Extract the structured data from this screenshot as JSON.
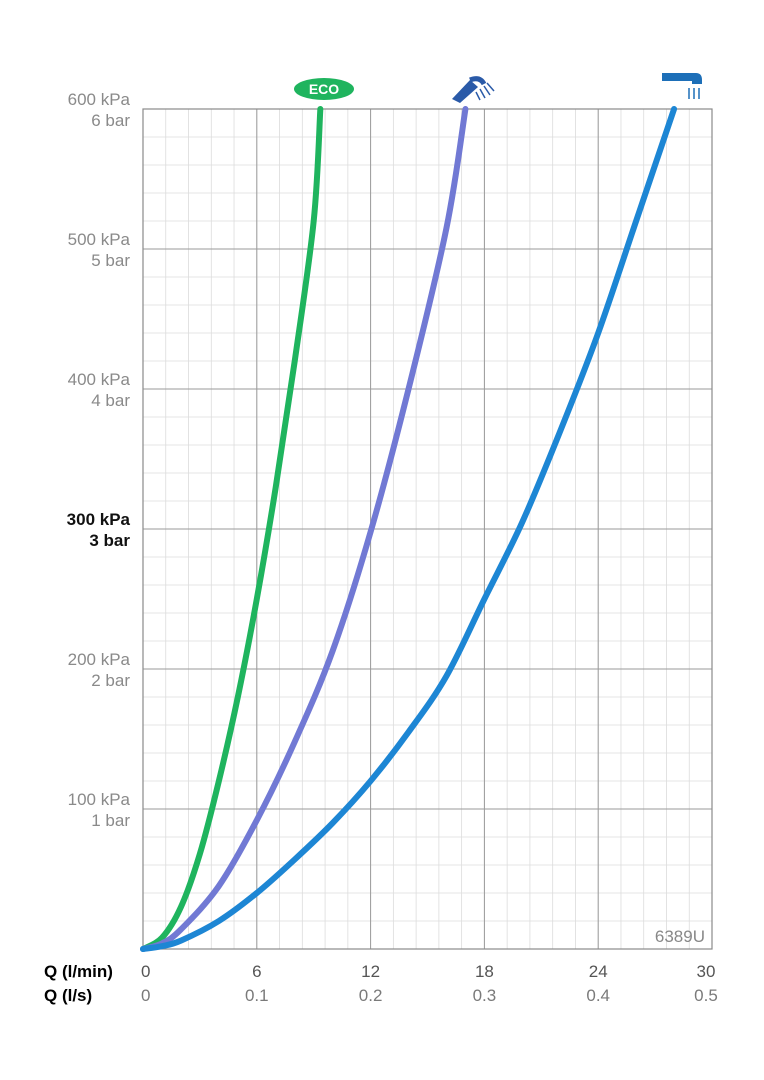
{
  "chart_data": {
    "type": "line",
    "x_axis": {
      "label_primary": "Q (l/min)",
      "label_secondary": "Q (l/s)",
      "range": [
        0,
        30
      ],
      "ticks": [
        0,
        6,
        12,
        18,
        24,
        30
      ],
      "tick_labels_primary": [
        "0",
        "6",
        "12",
        "18",
        "24",
        "30"
      ],
      "tick_labels_secondary": [
        "0",
        "0.1",
        "0.2",
        "0.3",
        "0.4",
        "0.5"
      ]
    },
    "y_axis": {
      "range": [
        0,
        600
      ],
      "ticks": [
        {
          "value": 100,
          "line1": "100 kPa",
          "line2": "1 bar",
          "highlight": false
        },
        {
          "value": 200,
          "line1": "200 kPa",
          "line2": "2 bar",
          "highlight": false
        },
        {
          "value": 300,
          "line1": "300 kPa",
          "line2": "3 bar",
          "highlight": true
        },
        {
          "value": 400,
          "line1": "400 kPa",
          "line2": "4 bar",
          "highlight": false
        },
        {
          "value": 500,
          "line1": "500 kPa",
          "line2": "5 bar",
          "highlight": false
        },
        {
          "value": 600,
          "line1": "600 kPa",
          "line2": "6 bar",
          "highlight": false
        }
      ]
    },
    "grid": true,
    "model_code": "6389U",
    "series": [
      {
        "icon": "eco-badge",
        "label": "ECO",
        "color": "#1fb45e",
        "points": [
          [
            0,
            0
          ],
          [
            1,
            8
          ],
          [
            2,
            30
          ],
          [
            3,
            68
          ],
          [
            4,
            120
          ],
          [
            5,
            180
          ],
          [
            6,
            250
          ],
          [
            7,
            330
          ],
          [
            8,
            420
          ],
          [
            9,
            520
          ],
          [
            9.35,
            600
          ]
        ]
      },
      {
        "icon": "hand-shower-icon",
        "color": "#7179d4",
        "points": [
          [
            0,
            0
          ],
          [
            1,
            4
          ],
          [
            2,
            14
          ],
          [
            4,
            45
          ],
          [
            6,
            92
          ],
          [
            8,
            148
          ],
          [
            10,
            213
          ],
          [
            12,
            298
          ],
          [
            14,
            400
          ],
          [
            16,
            515
          ],
          [
            17,
            600
          ]
        ]
      },
      {
        "icon": "overhead-shower-icon",
        "color": "#1d86d4",
        "points": [
          [
            0,
            0
          ],
          [
            1,
            2
          ],
          [
            2,
            6
          ],
          [
            4,
            20
          ],
          [
            6,
            40
          ],
          [
            8,
            64
          ],
          [
            10,
            90
          ],
          [
            12,
            120
          ],
          [
            14,
            155
          ],
          [
            16,
            195
          ],
          [
            18,
            250
          ],
          [
            20,
            305
          ],
          [
            22,
            370
          ],
          [
            24,
            440
          ],
          [
            26,
            520
          ],
          [
            28,
            600
          ]
        ]
      }
    ]
  }
}
